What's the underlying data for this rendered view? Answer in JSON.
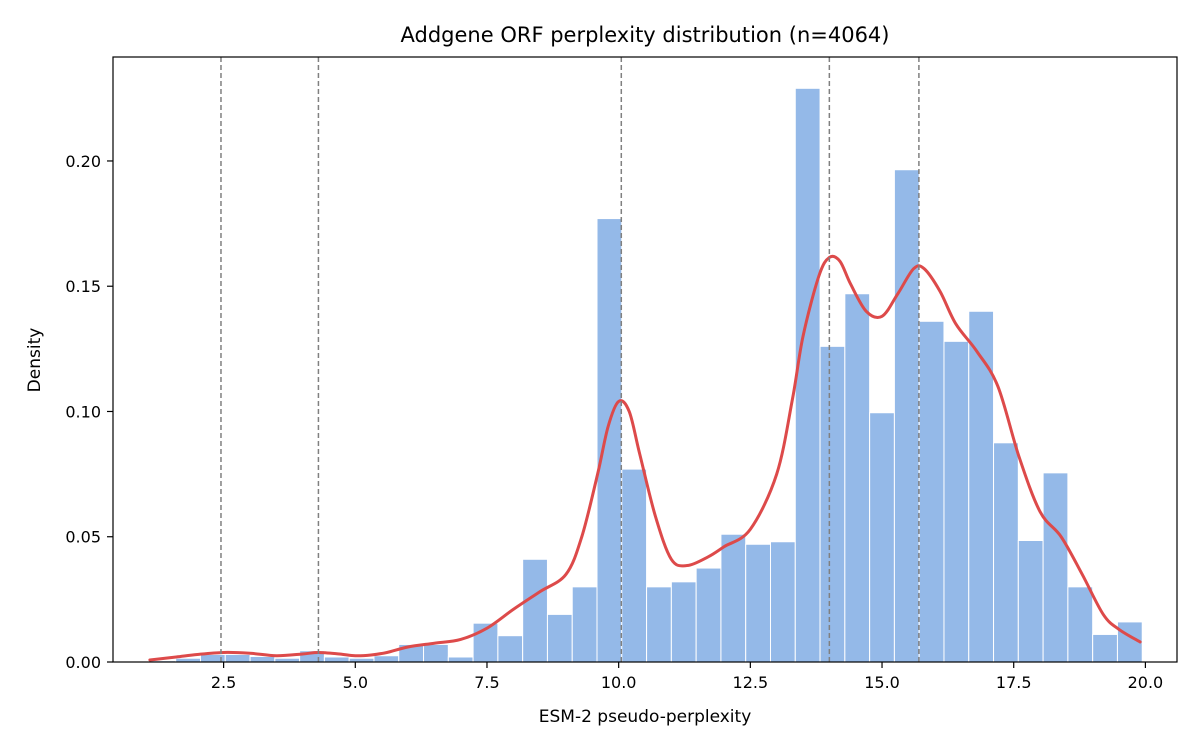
{
  "chart_data": {
    "type": "bar",
    "title": "Addgene ORF perplexity distribution (n=4064)",
    "xlabel": "ESM-2 pseudo-perplexity",
    "ylabel": "Density",
    "xlim": [
      0.4,
      20.6
    ],
    "ylim": [
      0,
      0.2415
    ],
    "xticks": [
      2.5,
      5.0,
      7.5,
      10.0,
      12.5,
      15.0,
      17.5,
      20.0
    ],
    "xtick_labels": [
      "2.5",
      "5.0",
      "7.5",
      "10.0",
      "12.5",
      "15.0",
      "17.5",
      "20.0"
    ],
    "yticks": [
      0.0,
      0.05,
      0.1,
      0.15,
      0.2
    ],
    "ytick_labels": [
      "0.00",
      "0.05",
      "0.10",
      "0.15",
      "0.20"
    ],
    "grid": false,
    "bin_start": 1.12,
    "bin_width": 0.4705,
    "histogram_values": [
      0.0005,
      0.0015,
      0.003,
      0.003,
      0.0022,
      0.0015,
      0.0045,
      0.002,
      0.0015,
      0.0025,
      0.007,
      0.007,
      0.002,
      0.0155,
      0.0105,
      0.041,
      0.019,
      0.03,
      0.177,
      0.077,
      0.03,
      0.032,
      0.0375,
      0.051,
      0.047,
      0.048,
      0.229,
      0.126,
      0.147,
      0.0995,
      0.1965,
      0.136,
      0.128,
      0.14,
      0.0875,
      0.0485,
      0.0755,
      0.03,
      0.011,
      0.016
    ],
    "kde": {
      "x": [
        1.1,
        1.6,
        2.0,
        2.5,
        3.0,
        3.5,
        4.0,
        4.3,
        4.7,
        5.0,
        5.3,
        5.6,
        6.0,
        6.5,
        7.0,
        7.5,
        8.0,
        8.5,
        9.0,
        9.3,
        9.6,
        9.8,
        10.0,
        10.2,
        10.4,
        10.7,
        11.0,
        11.3,
        11.7,
        12.0,
        12.5,
        13.0,
        13.3,
        13.5,
        13.8,
        14.0,
        14.2,
        14.4,
        14.7,
        15.0,
        15.3,
        15.6,
        15.8,
        16.1,
        16.4,
        16.8,
        17.2,
        17.6,
        18.0,
        18.4,
        18.8,
        19.2,
        19.5,
        19.9
      ],
      "y": [
        0.0008,
        0.002,
        0.003,
        0.0038,
        0.0035,
        0.0025,
        0.0032,
        0.0038,
        0.0032,
        0.0025,
        0.0028,
        0.0038,
        0.006,
        0.0075,
        0.009,
        0.0135,
        0.021,
        0.028,
        0.035,
        0.05,
        0.075,
        0.094,
        0.104,
        0.1,
        0.083,
        0.058,
        0.041,
        0.0385,
        0.042,
        0.046,
        0.053,
        0.075,
        0.105,
        0.13,
        0.154,
        0.1615,
        0.16,
        0.151,
        0.14,
        0.138,
        0.147,
        0.157,
        0.157,
        0.148,
        0.135,
        0.124,
        0.11,
        0.082,
        0.06,
        0.05,
        0.035,
        0.019,
        0.013,
        0.008
      ]
    },
    "reference_lines_x": [
      2.45,
      4.3,
      10.05,
      14.0,
      15.7
    ],
    "colors": {
      "bar_fill": "#94b9e8",
      "bar_edge": "#ffffff",
      "kde_line": "#dd4a4a",
      "ref_line": "#808080"
    }
  }
}
